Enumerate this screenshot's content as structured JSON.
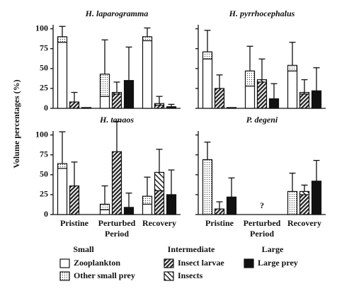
{
  "y_label": "Volume percentages (%)",
  "legend": {
    "groups": [
      {
        "name": "Small",
        "entries": [
          {
            "name": "Zooplankton",
            "pattern": "white"
          },
          {
            "name": "Other small prey",
            "pattern": "dots"
          }
        ]
      },
      {
        "name": "Intermediate",
        "entries": [
          {
            "name": "Insect larvae",
            "pattern": "dense-hatch"
          },
          {
            "name": "Insects",
            "pattern": "hatch"
          }
        ]
      },
      {
        "name": "Large",
        "entries": [
          {
            "name": "Large prey",
            "pattern": "black"
          }
        ]
      }
    ]
  },
  "chart_data": [
    {
      "type": "bar",
      "title": "H. laparogramma",
      "categories": [
        null,
        null,
        null
      ],
      "ylim": [
        0,
        105
      ],
      "yticks": [
        0,
        25,
        50,
        75,
        100
      ],
      "series": [
        {
          "values": [
            83,
            15,
            85
          ]
        },
        {
          "values": [
            7,
            28,
            5
          ]
        },
        {
          "values": [
            8,
            18,
            4
          ]
        },
        {
          "values": [
            0,
            2,
            2
          ]
        },
        {
          "values": [
            1,
            35,
            2
          ]
        }
      ],
      "errors": [
        [
          13,
          43,
          11
        ],
        [
          12,
          13,
          9
        ],
        [
          0,
          42,
          3
        ]
      ]
    },
    {
      "type": "bar",
      "title": "H. pyrrhocephalus",
      "categories": [
        null,
        null,
        null
      ],
      "ylim": [
        0,
        105
      ],
      "yticks": [
        0,
        25,
        50,
        75,
        100
      ],
      "series": [
        {
          "values": [
            62,
            28,
            47
          ]
        },
        {
          "values": [
            9,
            19,
            7
          ]
        },
        {
          "values": [
            25,
            33,
            18
          ]
        },
        {
          "values": [
            0,
            3,
            2
          ]
        },
        {
          "values": [
            1,
            12,
            22
          ]
        }
      ],
      "errors": [
        [
          27,
          31,
          29
        ],
        [
          17,
          26,
          16
        ],
        [
          0,
          19,
          29
        ]
      ]
    },
    {
      "type": "bar",
      "title": "H. tanaos",
      "categories": [
        "Pristine",
        "Perturbed Period",
        "Recovery"
      ],
      "ylim": [
        0,
        105
      ],
      "yticks": [
        0,
        25,
        50,
        75,
        100
      ],
      "series": [
        {
          "values": [
            58,
            6,
            13
          ]
        },
        {
          "values": [
            6,
            7,
            10
          ]
        },
        {
          "values": [
            36,
            79,
            30
          ]
        },
        {
          "values": [
            0,
            0,
            23
          ]
        },
        {
          "values": [
            0,
            9,
            25
          ]
        }
      ],
      "errors": [
        [
          40,
          23,
          24
        ],
        [
          30,
          38,
          29
        ],
        [
          0,
          18,
          31
        ]
      ]
    },
    {
      "type": "bar",
      "title": "P. degeni",
      "categories": [
        "Pristine",
        "Perturbed Period",
        "Recovery"
      ],
      "ylim": [
        0,
        105
      ],
      "yticks": [
        0,
        25,
        50,
        75,
        100
      ],
      "annotation": "?",
      "series": [
        {
          "values": [
            0,
            null,
            0
          ]
        },
        {
          "values": [
            69,
            null,
            29
          ]
        },
        {
          "values": [
            7,
            null,
            25
          ]
        },
        {
          "values": [
            0,
            null,
            4
          ]
        },
        {
          "values": [
            22,
            null,
            42
          ]
        }
      ],
      "errors": [
        [
          22,
          null,
          23
        ],
        [
          9,
          null,
          8
        ],
        [
          24,
          null,
          26
        ]
      ]
    }
  ]
}
